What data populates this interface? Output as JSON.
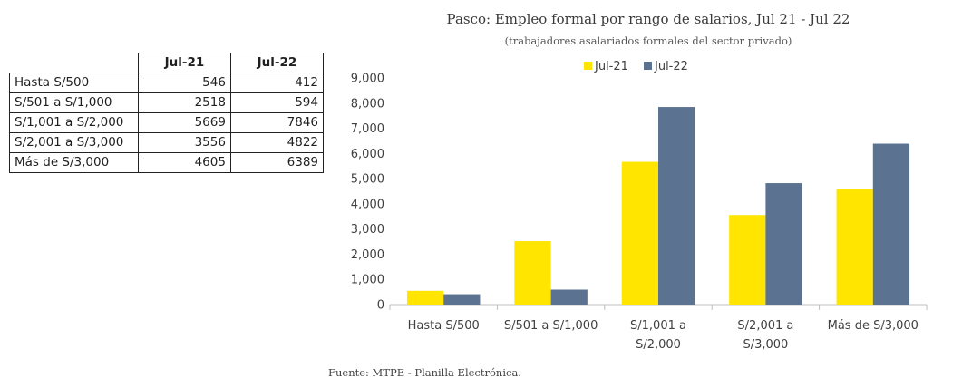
{
  "table": {
    "headers": [
      "",
      "Jul-21",
      "Jul-22"
    ],
    "rows": [
      {
        "label": "Hasta S/500",
        "v1": "546",
        "v2": "412"
      },
      {
        "label": "S/501 a S/1,000",
        "v1": "2518",
        "v2": "594"
      },
      {
        "label": "S/1,001 a S/2,000",
        "v1": "5669",
        "v2": "7846"
      },
      {
        "label": "S/2,001 a S/3,000",
        "v1": "3556",
        "v2": "4822"
      },
      {
        "label": "Más de S/3,000",
        "v1": "4605",
        "v2": "6389"
      }
    ]
  },
  "source_note": "Fuente: MTPE - Planilla Electrónica.",
  "chart_data": {
    "type": "bar",
    "title": "Pasco: Empleo formal por rango de salarios, Jul 21 - Jul 22",
    "subtitle": "(trabajadores asalariados formales del sector privado)",
    "categories": [
      [
        "Hasta S/500"
      ],
      [
        "S/501 a S/1,000"
      ],
      [
        "S/1,001 a",
        "S/2,000"
      ],
      [
        "S/2,001 a",
        "S/3,000"
      ],
      [
        "Más de S/3,000"
      ]
    ],
    "series": [
      {
        "name": "Jul-21",
        "color": "#FFE500",
        "values": [
          546,
          2518,
          5669,
          3556,
          4605
        ]
      },
      {
        "name": "Jul-22",
        "color": "#5B7391",
        "values": [
          412,
          594,
          7846,
          4822,
          6389
        ]
      }
    ],
    "xlabel": "",
    "ylabel": "",
    "ylim": [
      0,
      9000
    ],
    "yticks": [
      "0",
      "1,000",
      "2,000",
      "3,000",
      "4,000",
      "5,000",
      "6,000",
      "7,000",
      "8,000",
      "9,000"
    ],
    "grid": false,
    "legend_position": "top"
  }
}
